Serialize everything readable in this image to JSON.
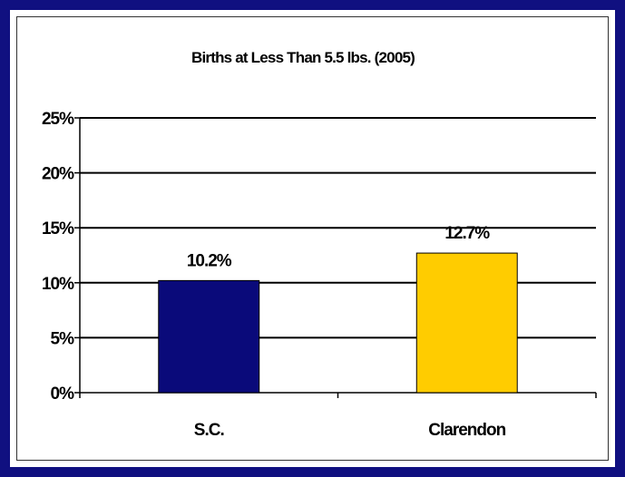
{
  "colors": {
    "frame_background": "#101080",
    "plot_background": "#ffffff",
    "gridline": "#000000"
  },
  "chart_data": {
    "type": "bar",
    "title": "Births at Less Than 5.5 lbs. (2005)",
    "xlabel": "",
    "ylabel": "",
    "categories": [
      "S.C.",
      "Clarendon"
    ],
    "values": [
      10.2,
      12.7
    ],
    "value_labels": [
      "10.2%",
      "12.7%"
    ],
    "bar_colors": [
      "#0a0a7a",
      "#ffcc00"
    ],
    "ylim": [
      0,
      25
    ],
    "yticks": [
      0,
      5,
      10,
      15,
      20,
      25
    ],
    "ytick_labels": [
      "0%",
      "5%",
      "10%",
      "15%",
      "20%",
      "25%"
    ],
    "grid": true,
    "legend": "none"
  }
}
